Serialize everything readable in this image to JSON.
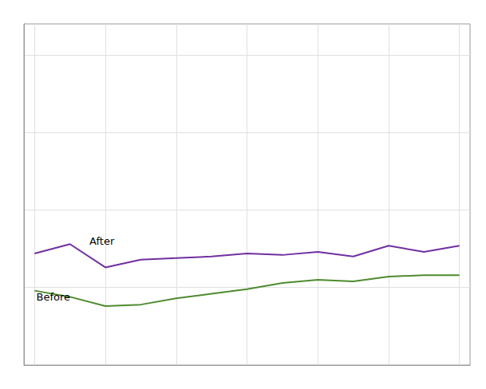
{
  "chart_data": {
    "type": "line",
    "x": [
      0,
      1,
      2,
      3,
      4,
      5,
      6,
      7,
      8,
      9,
      10,
      11,
      12
    ],
    "series": [
      {
        "color": "#7030a0",
        "values": [
          0.72,
          0.78,
          0.63,
          0.68,
          0.69,
          0.7,
          0.72,
          0.71,
          0.73,
          0.7,
          0.77,
          0.73,
          0.77
        ]
      },
      {
        "color": "#4e8b2e",
        "values": [
          0.48,
          0.44,
          0.38,
          0.39,
          0.43,
          0.46,
          0.49,
          0.53,
          0.55,
          0.54,
          0.57,
          0.58,
          0.58
        ]
      }
    ],
    "annotations": [
      {
        "text": "After",
        "x": 1.55,
        "y": 0.8
      },
      {
        "text": "Before",
        "x": 0.05,
        "y": 0.44
      }
    ],
    "xlim": [
      -0.3,
      12.3
    ],
    "ylim": [
      0.0,
      2.2
    ],
    "xticks": [
      0,
      2,
      4,
      6,
      8,
      10,
      12
    ],
    "yticks": [
      0,
      0.5,
      1,
      1.5,
      2
    ],
    "grid": true,
    "tick_labels": false
  }
}
